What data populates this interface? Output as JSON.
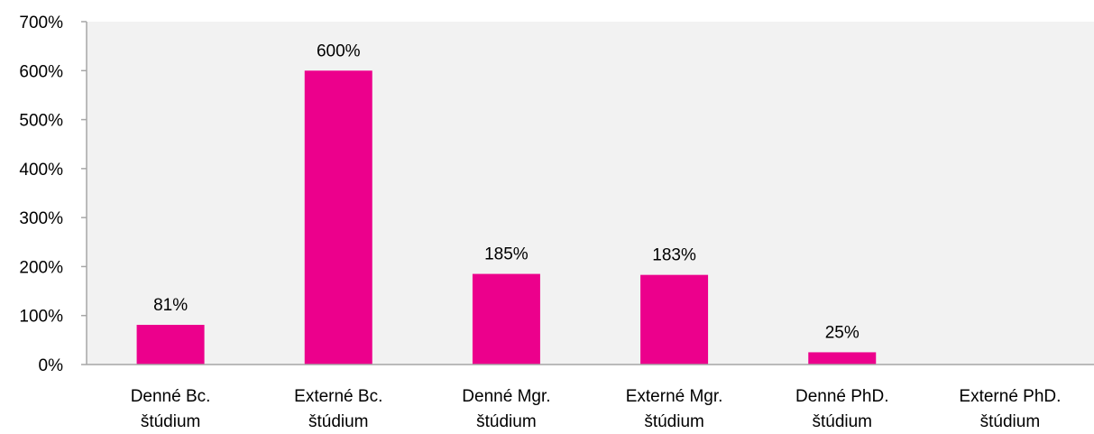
{
  "chart_data": {
    "type": "bar",
    "title": "",
    "xlabel": "",
    "ylabel": "",
    "categories": [
      [
        "Denné Bc.",
        "štúdium"
      ],
      [
        "Externé Bc.",
        "štúdium"
      ],
      [
        "Denné Mgr.",
        "štúdium"
      ],
      [
        "Externé Mgr.",
        "štúdium"
      ],
      [
        "Denné PhD.",
        "štúdium"
      ],
      [
        "Externé PhD.",
        "štúdium"
      ]
    ],
    "values": [
      81,
      600,
      185,
      183,
      25,
      null
    ],
    "data_labels": [
      "81%",
      "600%",
      "185%",
      "183%",
      "25%",
      ""
    ],
    "ylim": [
      0,
      700
    ],
    "yticks": [
      0,
      100,
      200,
      300,
      400,
      500,
      600,
      700
    ],
    "ytick_labels": [
      "0%",
      "100%",
      "200%",
      "300%",
      "400%",
      "500%",
      "600%",
      "700%"
    ],
    "grid": false,
    "legend": "none",
    "colors": {
      "bar": "#EC008C",
      "plot_background": "#F2F2F2",
      "axis": "#A6A6A6"
    }
  }
}
